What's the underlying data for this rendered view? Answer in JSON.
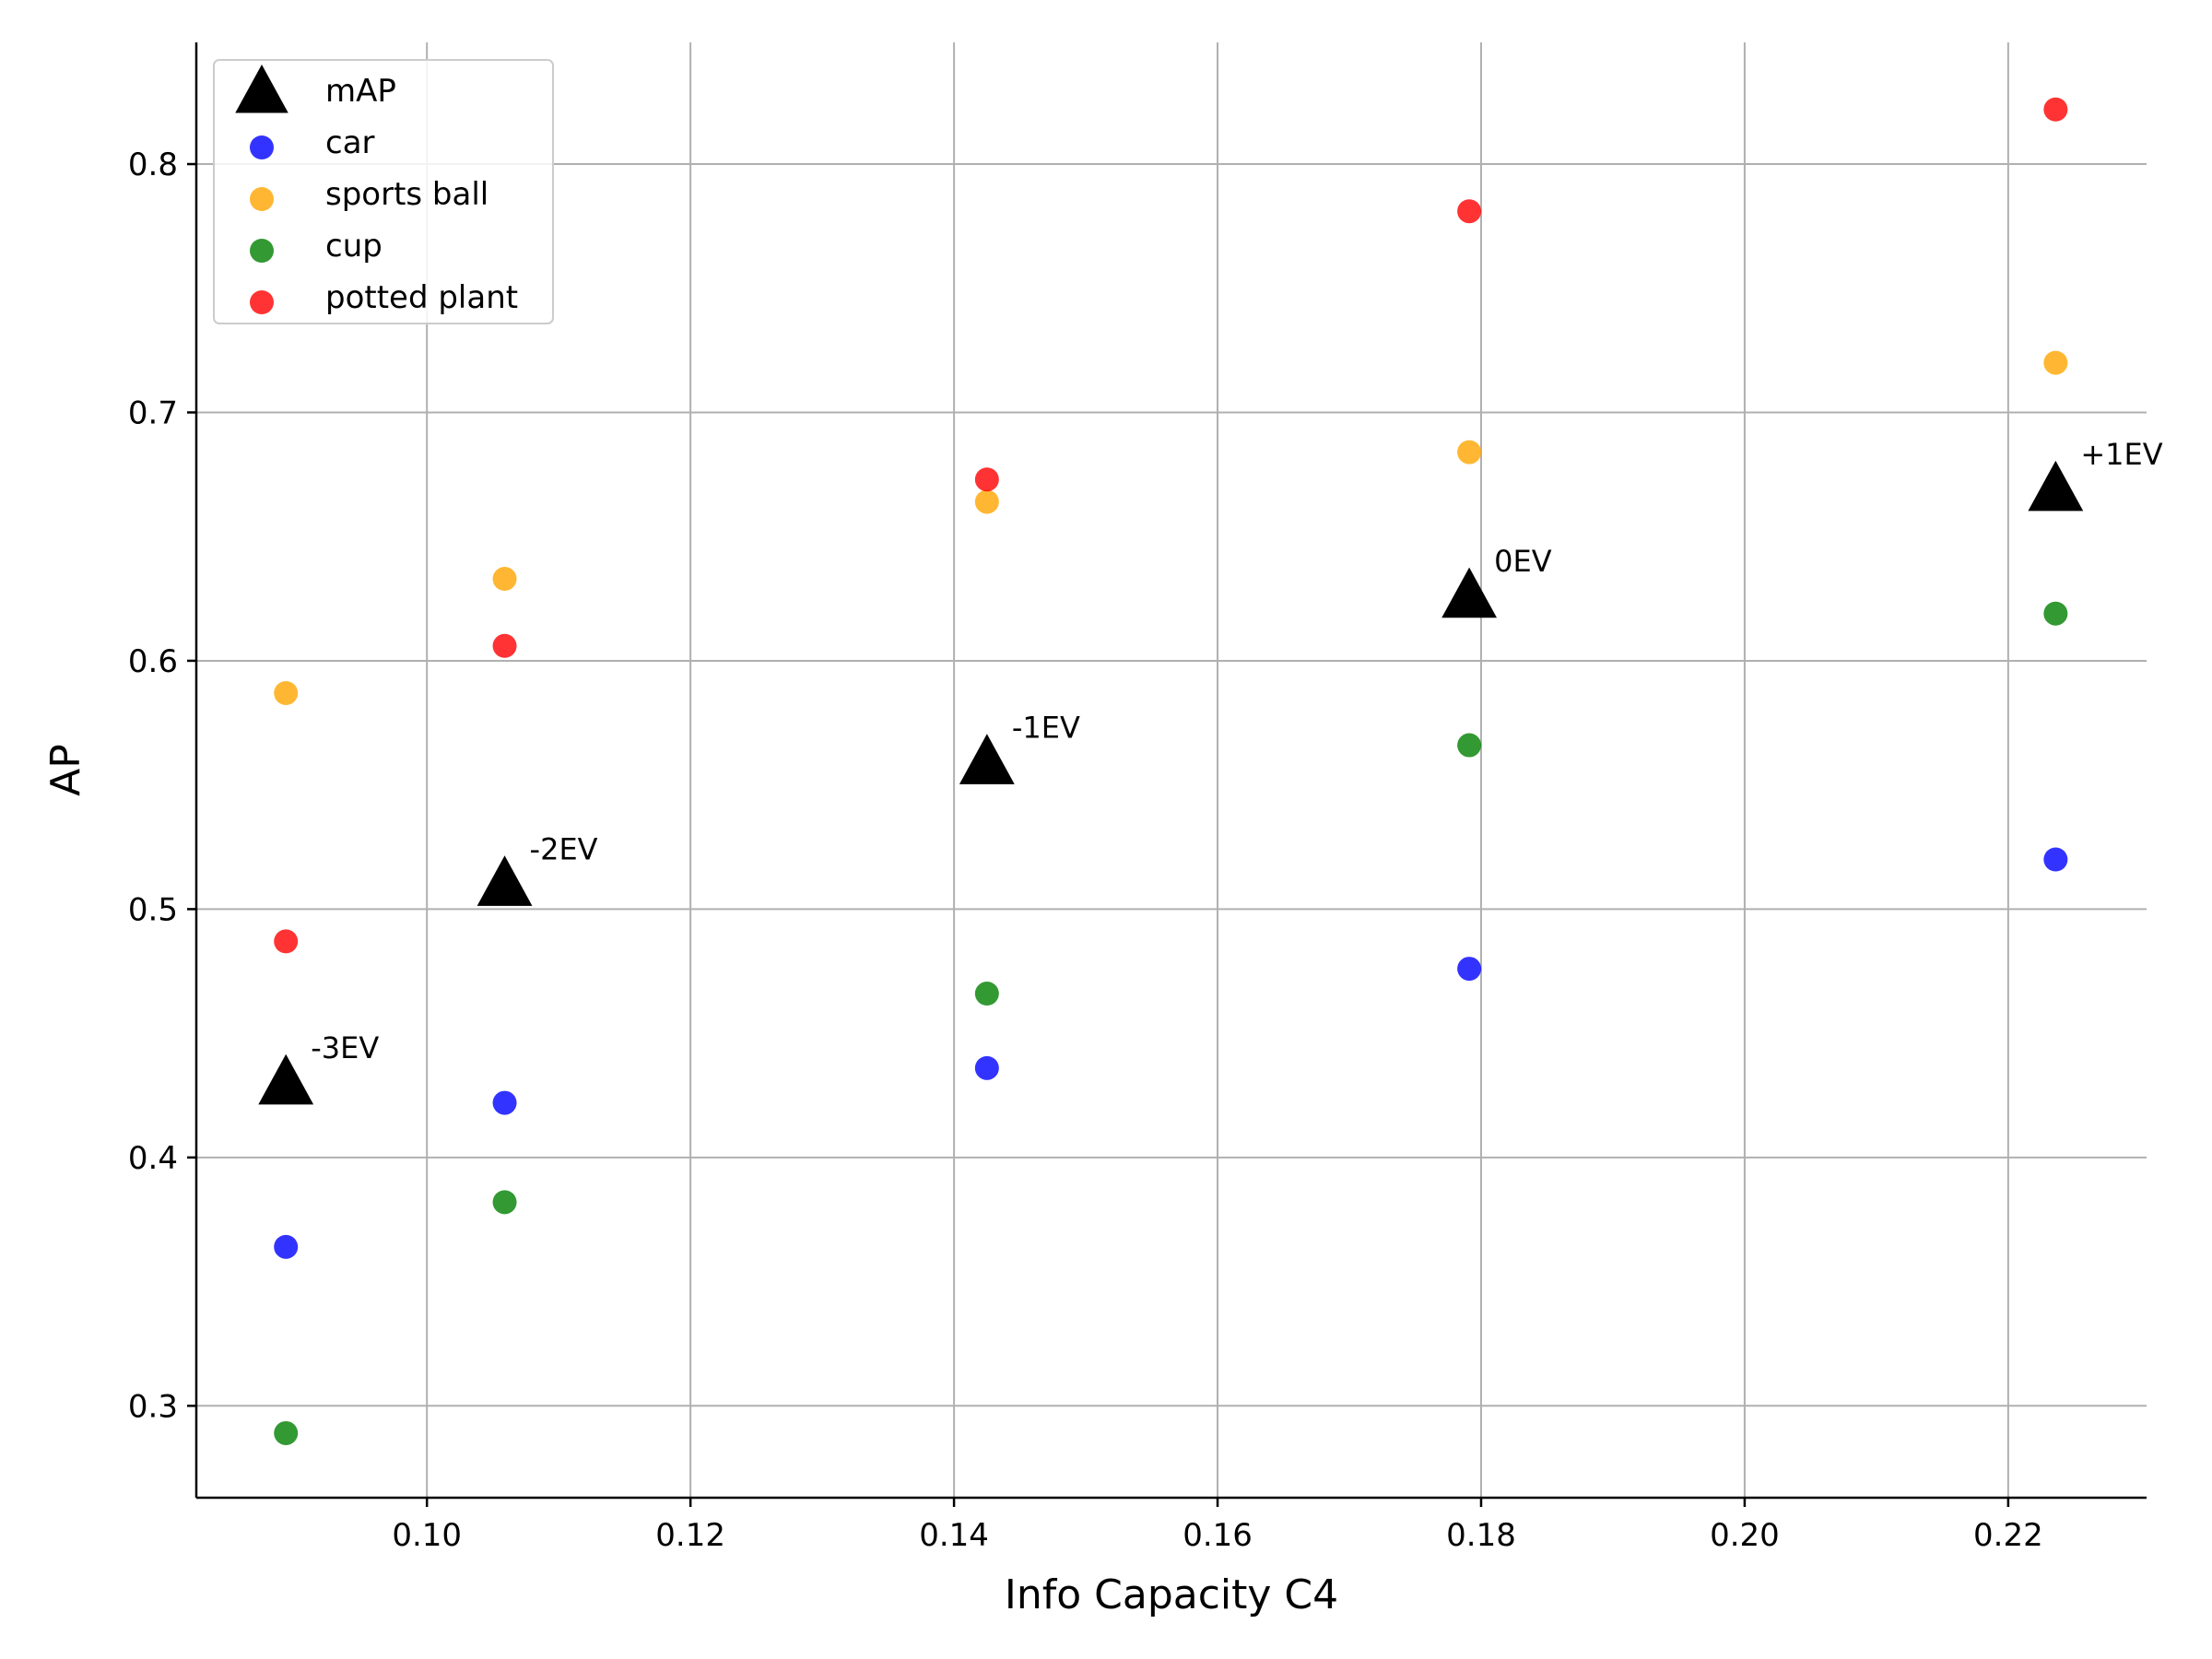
{
  "chart_data": {
    "type": "scatter",
    "title": "",
    "xlabel": "Info Capacity C4",
    "ylabel": "AP",
    "xlim": [
      0.0825,
      0.2305
    ],
    "ylim": [
      0.263,
      0.849
    ],
    "xticks": [
      0.1,
      0.12,
      0.14,
      0.16,
      0.18,
      0.2,
      0.22
    ],
    "xtick_labels": [
      "0.10",
      "0.12",
      "0.14",
      "0.16",
      "0.18",
      "0.20",
      "0.22"
    ],
    "yticks": [
      0.3,
      0.4,
      0.5,
      0.6,
      0.7,
      0.8
    ],
    "ytick_labels": [
      "0.3",
      "0.4",
      "0.5",
      "0.6",
      "0.7",
      "0.8"
    ],
    "grid": true,
    "legend_position": "upper-left",
    "series": [
      {
        "name": "mAP",
        "marker": "triangle",
        "color": "#000000",
        "x": [
          0.0893,
          0.1059,
          0.1425,
          0.1791,
          0.2236
        ],
        "y": [
          0.43,
          0.51,
          0.559,
          0.626,
          0.669
        ],
        "annotations": [
          "-3EV",
          "-2EV",
          "-1EV",
          "0EV",
          "+1EV"
        ]
      },
      {
        "name": "car",
        "marker": "circle",
        "color": "#0000ff",
        "x": [
          0.0893,
          0.1059,
          0.1425,
          0.1791,
          0.2236
        ],
        "y": [
          0.364,
          0.422,
          0.436,
          0.476,
          0.52
        ]
      },
      {
        "name": "sports ball",
        "marker": "circle",
        "color": "#ffa500",
        "x": [
          0.0893,
          0.1059,
          0.1425,
          0.1791,
          0.2236
        ],
        "y": [
          0.587,
          0.633,
          0.664,
          0.684,
          0.72
        ]
      },
      {
        "name": "cup",
        "marker": "circle",
        "color": "#008000",
        "x": [
          0.0893,
          0.1059,
          0.1425,
          0.1791,
          0.2236
        ],
        "y": [
          0.289,
          0.382,
          0.466,
          0.566,
          0.619
        ]
      },
      {
        "name": "potted plant",
        "marker": "circle",
        "color": "#ff0000",
        "x": [
          0.0893,
          0.1059,
          0.1425,
          0.1791,
          0.2236
        ],
        "y": [
          0.487,
          0.606,
          0.673,
          0.781,
          0.822
        ]
      }
    ]
  }
}
